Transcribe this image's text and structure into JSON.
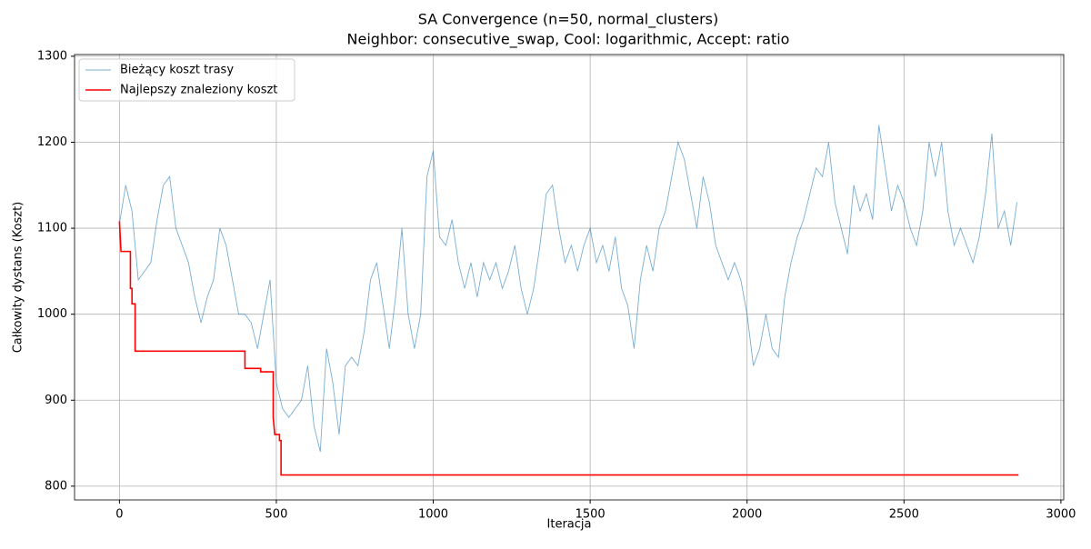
{
  "chart_data": {
    "type": "line",
    "title": "SA Convergence (n=50, normal_clusters)",
    "subtitle": "Neighbor: consecutive_swap, Cool: logarithmic, Accept: ratio",
    "x_label": "Iteracja",
    "y_label": "Całkowity dystans (Koszt)",
    "xlim": [
      -143,
      3009
    ],
    "ylim": [
      784,
      1302
    ],
    "xticks": [
      0,
      500,
      1000,
      1500,
      2000,
      2500,
      3000
    ],
    "yticks": [
      800,
      900,
      1000,
      1100,
      1200,
      1300
    ],
    "grid": true,
    "legend": "upper-left",
    "series": [
      {
        "name": "Bieżący koszt trasy",
        "color": "#1f77b4",
        "x": [
          0,
          20,
          40,
          60,
          80,
          100,
          120,
          140,
          160,
          180,
          200,
          220,
          240,
          260,
          280,
          300,
          320,
          340,
          360,
          380,
          400,
          420,
          440,
          460,
          480,
          500,
          520,
          540,
          560,
          580,
          600,
          620,
          640,
          660,
          680,
          700,
          720,
          740,
          760,
          780,
          800,
          820,
          840,
          860,
          880,
          900,
          920,
          940,
          960,
          980,
          1000,
          1020,
          1040,
          1060,
          1080,
          1100,
          1120,
          1140,
          1160,
          1180,
          1200,
          1220,
          1240,
          1260,
          1280,
          1300,
          1320,
          1340,
          1360,
          1380,
          1400,
          1420,
          1440,
          1460,
          1480,
          1500,
          1520,
          1540,
          1560,
          1580,
          1600,
          1620,
          1640,
          1660,
          1680,
          1700,
          1720,
          1740,
          1760,
          1780,
          1800,
          1820,
          1840,
          1860,
          1880,
          1900,
          1920,
          1940,
          1960,
          1980,
          2000,
          2020,
          2040,
          2060,
          2080,
          2100,
          2120,
          2140,
          2160,
          2180,
          2200,
          2220,
          2240,
          2260,
          2280,
          2300,
          2320,
          2340,
          2360,
          2380,
          2400,
          2420,
          2440,
          2460,
          2480,
          2500,
          2520,
          2540,
          2560,
          2580,
          2600,
          2620,
          2640,
          2660,
          2680,
          2700,
          2720,
          2740,
          2760,
          2780,
          2800,
          2820,
          2840,
          2860
        ],
        "values": [
          1105,
          1150,
          1120,
          1040,
          1050,
          1060,
          1110,
          1150,
          1160,
          1100,
          1080,
          1060,
          1020,
          990,
          1020,
          1040,
          1100,
          1080,
          1040,
          1000,
          1000,
          990,
          960,
          1000,
          1040,
          920,
          890,
          880,
          890,
          900,
          940,
          870,
          840,
          960,
          920,
          860,
          940,
          950,
          940,
          980,
          1040,
          1060,
          1010,
          960,
          1020,
          1100,
          1000,
          960,
          1000,
          1160,
          1190,
          1090,
          1080,
          1110,
          1060,
          1030,
          1060,
          1020,
          1060,
          1040,
          1060,
          1030,
          1050,
          1080,
          1030,
          1000,
          1030,
          1080,
          1140,
          1150,
          1100,
          1060,
          1080,
          1050,
          1080,
          1100,
          1060,
          1080,
          1050,
          1090,
          1030,
          1010,
          960,
          1040,
          1080,
          1050,
          1100,
          1120,
          1160,
          1200,
          1180,
          1140,
          1100,
          1160,
          1130,
          1080,
          1060,
          1040,
          1060,
          1040,
          1000,
          940,
          960,
          1000,
          960,
          950,
          1020,
          1060,
          1090,
          1110,
          1140,
          1170,
          1160,
          1200,
          1130,
          1100,
          1070,
          1150,
          1120,
          1140,
          1110,
          1220,
          1170,
          1120,
          1150,
          1130,
          1100,
          1080,
          1120,
          1200,
          1160,
          1200,
          1120,
          1080,
          1100,
          1080,
          1060,
          1090,
          1140,
          1210,
          1100,
          1120,
          1080,
          1130
        ]
      },
      {
        "name": "Najlepszy znaleziony koszt",
        "color": "#ff0000",
        "x": [
          0,
          5,
          35,
          35,
          40,
          40,
          50,
          50,
          400,
          400,
          450,
          450,
          490,
          490,
          495,
          510,
          510,
          515,
          515,
          2865
        ],
        "values": [
          1108,
          1073,
          1073,
          1030,
          1030,
          1012,
          1012,
          957,
          957,
          937,
          937,
          933,
          933,
          880,
          860,
          860,
          853,
          853,
          813,
          813
        ]
      }
    ]
  }
}
